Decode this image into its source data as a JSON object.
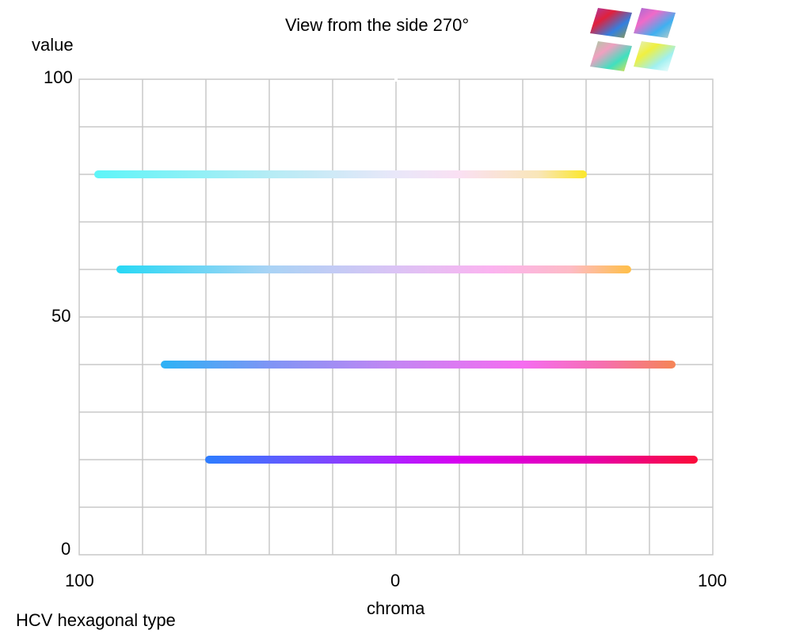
{
  "chart_data": {
    "type": "line",
    "title": "View from the side 270°",
    "xlabel": "chroma",
    "ylabel": "value",
    "footer_label": "HCV hexagonal type",
    "x_tick_labels": [
      "100",
      "0",
      "100"
    ],
    "y_tick_labels": [
      "100",
      "50",
      "0"
    ],
    "xlim": [
      -100,
      100
    ],
    "ylim": [
      0,
      100
    ],
    "grid": true,
    "x_grid_step": 20,
    "y_grid_step": 10,
    "series": [
      {
        "y": 80,
        "x_start": -94,
        "x_end": 59,
        "stops": [
          {
            "x": -94,
            "color": "#5ff5f8"
          },
          {
            "x": -40,
            "color": "#b5ecf5"
          },
          {
            "x": 0,
            "color": "#e9e7f9"
          },
          {
            "x": 20,
            "color": "#fae0f3"
          },
          {
            "x": 45,
            "color": "#f9e6b8"
          },
          {
            "x": 59,
            "color": "#fbe733"
          }
        ]
      },
      {
        "y": 60,
        "x_start": -87,
        "x_end": 73,
        "stops": [
          {
            "x": -87,
            "color": "#2ad8f5"
          },
          {
            "x": -40,
            "color": "#a9d3f5"
          },
          {
            "x": 0,
            "color": "#dbc3f5"
          },
          {
            "x": 30,
            "color": "#fbb3f0"
          },
          {
            "x": 55,
            "color": "#fdbbc6"
          },
          {
            "x": 73,
            "color": "#ffbf4f"
          }
        ]
      },
      {
        "y": 40,
        "x_start": -73,
        "x_end": 87,
        "stops": [
          {
            "x": -73,
            "color": "#2fb1f5"
          },
          {
            "x": -40,
            "color": "#7f95f5"
          },
          {
            "x": 0,
            "color": "#c486f3"
          },
          {
            "x": 40,
            "color": "#f56cf0"
          },
          {
            "x": 65,
            "color": "#f66fb0"
          },
          {
            "x": 87,
            "color": "#f5845a"
          }
        ]
      },
      {
        "y": 20,
        "x_start": -59,
        "x_end": 94,
        "stops": [
          {
            "x": -59,
            "color": "#2f7cff"
          },
          {
            "x": -30,
            "color": "#6a55ff"
          },
          {
            "x": 0,
            "color": "#b020ff"
          },
          {
            "x": 20,
            "color": "#d800f0"
          },
          {
            "x": 60,
            "color": "#e600b0"
          },
          {
            "x": 94,
            "color": "#fa0a3c"
          }
        ]
      }
    ]
  },
  "thumbnails": [
    {
      "name": "top-left",
      "colors": [
        "#a33fb0",
        "#e0203c",
        "#3380e0",
        "#9a9a40"
      ]
    },
    {
      "name": "top-right",
      "colors": [
        "#9a6ad4",
        "#f06ac8",
        "#3fb0f0",
        "#cbd0c0"
      ]
    },
    {
      "name": "bottom-left",
      "colors": [
        "#a0d0a0",
        "#f0a0c0",
        "#40e0c0",
        "#f0e040"
      ]
    },
    {
      "name": "bottom-right",
      "colors": [
        "#e0f0d0",
        "#f0f040",
        "#a0f0f0",
        "#ffffff"
      ]
    }
  ]
}
